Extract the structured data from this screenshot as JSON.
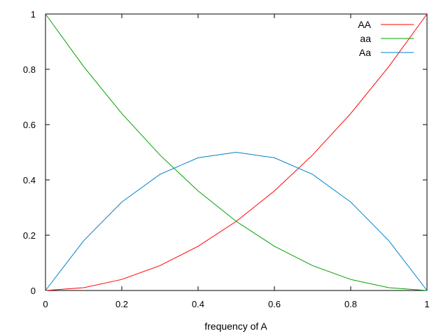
{
  "chart_data": {
    "type": "line",
    "title": "",
    "xlabel": "frequency of A",
    "ylabel": "",
    "xlim": [
      0,
      1
    ],
    "ylim": [
      0,
      1
    ],
    "x_ticks": [
      0,
      0.2,
      0.4,
      0.6,
      0.8,
      1
    ],
    "x_tick_labels": [
      "0",
      "0.2",
      "0.4",
      "0.6",
      "0.8",
      "1"
    ],
    "y_ticks": [
      0,
      0.2,
      0.4,
      0.6,
      0.8,
      1
    ],
    "y_tick_labels": [
      "0",
      "0.2",
      "0.4",
      "0.6",
      "0.8",
      "1"
    ],
    "grid": false,
    "legend_position": "top-right",
    "x": [
      0,
      0.1,
      0.2,
      0.3,
      0.4,
      0.5,
      0.6,
      0.7,
      0.8,
      0.9,
      1
    ],
    "series": [
      {
        "name": "AA",
        "color": "#ff0000",
        "values": [
          0,
          0.01,
          0.04,
          0.09,
          0.16,
          0.25,
          0.36,
          0.49,
          0.64,
          0.81,
          1
        ]
      },
      {
        "name": "aa",
        "color": "#00a000",
        "values": [
          1,
          0.81,
          0.64,
          0.49,
          0.36,
          0.25,
          0.16,
          0.09,
          0.04,
          0.01,
          0
        ]
      },
      {
        "name": "Aa",
        "color": "#0080cc",
        "values": [
          0,
          0.18,
          0.32,
          0.42,
          0.48,
          0.5,
          0.48,
          0.42,
          0.32,
          0.18,
          0
        ]
      }
    ]
  }
}
